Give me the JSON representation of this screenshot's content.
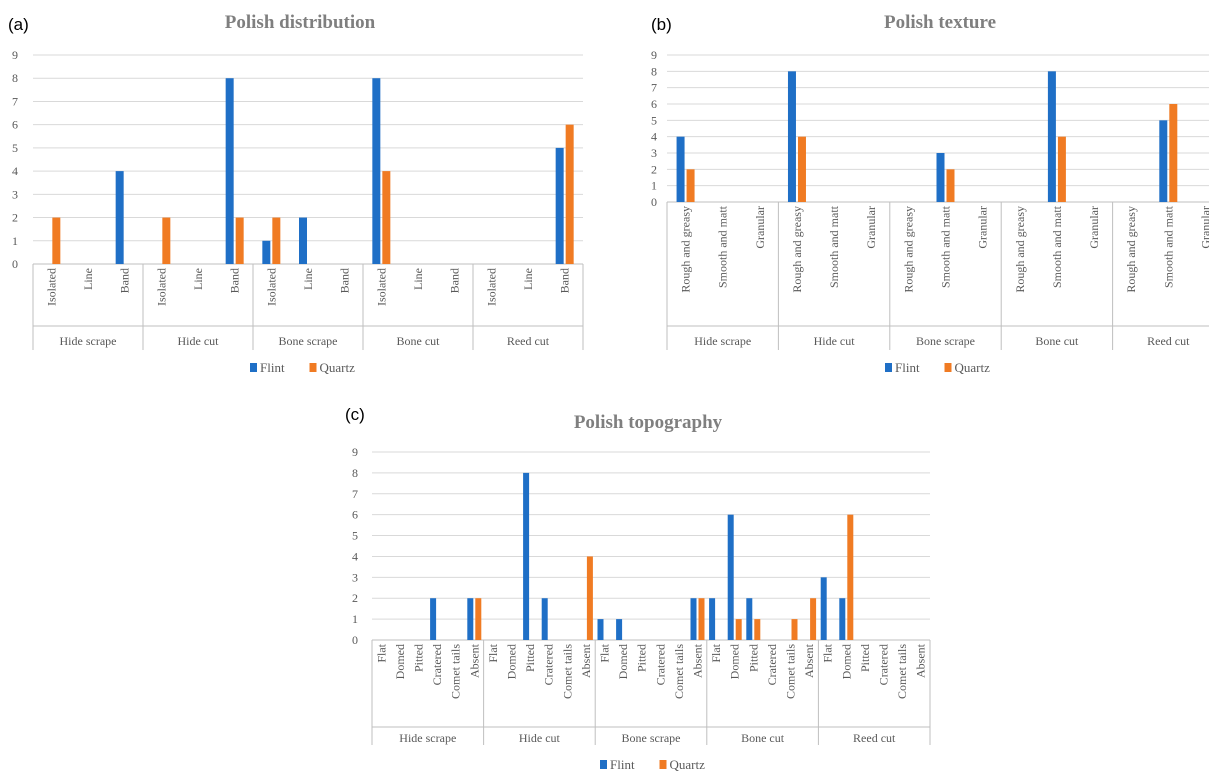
{
  "colors": {
    "flint": "#1f6fc6",
    "quartz": "#f07b23",
    "grid": "#d9d9d9",
    "axis": "#bfbfbf",
    "text": "#595959",
    "title": "#7f7f7f"
  },
  "chart_data": [
    {
      "panel_label": "(a)",
      "type": "bar",
      "title": "Polish distribution",
      "ylim": [
        0,
        9
      ],
      "yticks": [
        "0",
        "1",
        "2",
        "3",
        "4",
        "5",
        "6",
        "7",
        "8",
        "9"
      ],
      "grid": true,
      "legend_position": "bottom",
      "groups": [
        "Hide scrape",
        "Hide cut",
        "Bone scrape",
        "Bone cut",
        "Reed cut"
      ],
      "subcategories": [
        "Isolated",
        "Line",
        "Band"
      ],
      "series": [
        {
          "name": "Flint",
          "color": "#1f6fc6",
          "values": [
            [
              0,
              0,
              4
            ],
            [
              0,
              0,
              8
            ],
            [
              1,
              2,
              0
            ],
            [
              8,
              0,
              0
            ],
            [
              0,
              0,
              5
            ]
          ]
        },
        {
          "name": "Quartz",
          "color": "#f07b23",
          "values": [
            [
              2,
              0,
              0
            ],
            [
              2,
              0,
              2
            ],
            [
              2,
              0,
              0
            ],
            [
              4,
              0,
              0
            ],
            [
              0,
              0,
              6
            ]
          ]
        }
      ]
    },
    {
      "panel_label": "(b)",
      "type": "bar",
      "title": "Polish texture",
      "ylim": [
        0,
        9
      ],
      "yticks": [
        "0",
        "1",
        "2",
        "3",
        "4",
        "5",
        "6",
        "7",
        "8",
        "9"
      ],
      "grid": true,
      "legend_position": "bottom",
      "groups": [
        "Hide scrape",
        "Hide cut",
        "Bone scrape",
        "Bone cut",
        "Reed cut"
      ],
      "subcategories": [
        "Rough and greasy",
        "Smooth and matt",
        "Granular"
      ],
      "series": [
        {
          "name": "Flint",
          "color": "#1f6fc6",
          "values": [
            [
              4,
              0,
              0
            ],
            [
              8,
              0,
              0
            ],
            [
              0,
              3,
              0
            ],
            [
              0,
              8,
              0
            ],
            [
              0,
              5,
              0
            ]
          ]
        },
        {
          "name": "Quartz",
          "color": "#f07b23",
          "values": [
            [
              2,
              0,
              0
            ],
            [
              4,
              0,
              0
            ],
            [
              0,
              2,
              0
            ],
            [
              0,
              4,
              0
            ],
            [
              0,
              6,
              0
            ]
          ]
        }
      ]
    },
    {
      "panel_label": "(c)",
      "type": "bar",
      "title": "Polish topography",
      "ylim": [
        0,
        9
      ],
      "yticks": [
        "0",
        "1",
        "2",
        "3",
        "4",
        "5",
        "6",
        "7",
        "8",
        "9"
      ],
      "grid": true,
      "legend_position": "bottom",
      "groups": [
        "Hide scrape",
        "Hide cut",
        "Bone scrape",
        "Bone cut",
        "Reed cut"
      ],
      "subcategories": [
        "Flat",
        "Domed",
        "Pitted",
        "Cratered",
        "Comet tails",
        "Absent"
      ],
      "series": [
        {
          "name": "Flint",
          "color": "#1f6fc6",
          "values": [
            [
              0,
              0,
              0,
              2,
              0,
              2
            ],
            [
              0,
              0,
              8,
              2,
              0,
              0
            ],
            [
              1,
              1,
              0,
              0,
              0,
              2
            ],
            [
              2,
              6,
              2,
              0,
              0,
              0
            ],
            [
              3,
              2,
              0,
              0,
              0,
              0
            ]
          ]
        },
        {
          "name": "Quartz",
          "color": "#f07b23",
          "values": [
            [
              0,
              0,
              0,
              0,
              0,
              2
            ],
            [
              0,
              0,
              0,
              0,
              0,
              4
            ],
            [
              0,
              0,
              0,
              0,
              0,
              2
            ],
            [
              0,
              1,
              1,
              0,
              1,
              2
            ],
            [
              0,
              6,
              0,
              0,
              0,
              0
            ]
          ]
        }
      ]
    }
  ]
}
